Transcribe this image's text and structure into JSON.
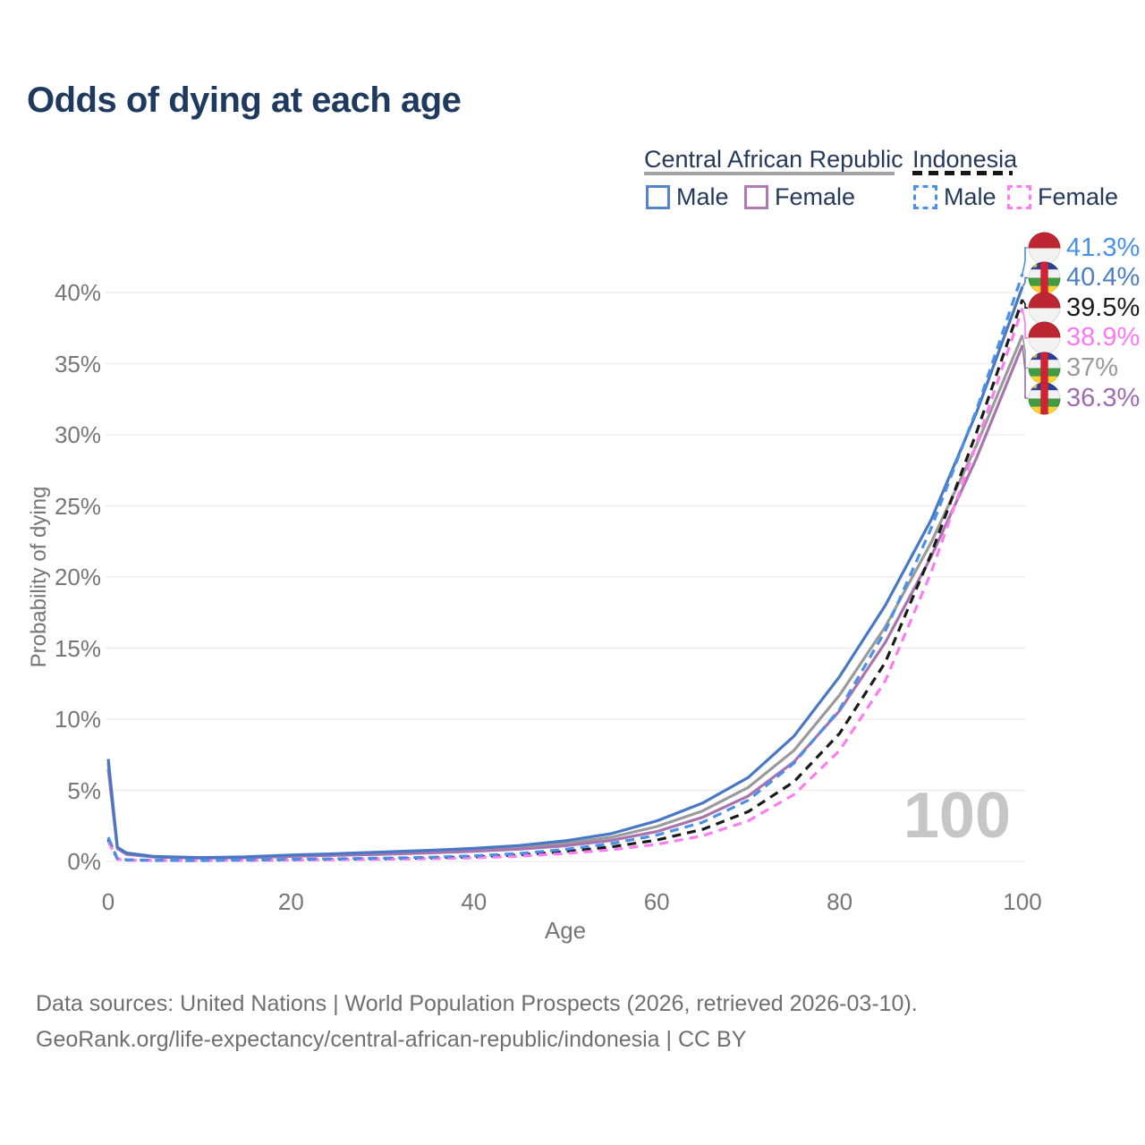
{
  "title": "Odds of dying at each age",
  "legend": {
    "groups": [
      {
        "name": "Central African Republic",
        "style": "solid",
        "rule_color": "#a3a3a3",
        "items": [
          {
            "label": "Male",
            "color": "#5585c8"
          },
          {
            "label": "Female",
            "color": "#b27ab5"
          }
        ]
      },
      {
        "name": "Indonesia",
        "style": "dashed",
        "rule_color": "#161616",
        "items": [
          {
            "label": "Male",
            "color": "#4a90e8"
          },
          {
            "label": "Female",
            "color": "#ff7cf0"
          }
        ]
      }
    ]
  },
  "chart_data": {
    "type": "line",
    "title": "Odds of dying at each age",
    "xlabel": "Age",
    "ylabel": "Probability of dying",
    "xlim": [
      0,
      100
    ],
    "ylim_percent": [
      0,
      44
    ],
    "grid": "horizontal",
    "xticks": [
      0,
      20,
      40,
      60,
      80,
      100
    ],
    "ytick_values": [
      0,
      5,
      10,
      15,
      20,
      25,
      30,
      35,
      40
    ],
    "ytick_labels": [
      "0%",
      "5%",
      "10%",
      "15%",
      "20%",
      "25%",
      "30%",
      "35%",
      "40%"
    ],
    "x_ages": [
      0,
      1,
      2,
      5,
      10,
      15,
      20,
      25,
      30,
      35,
      40,
      45,
      50,
      55,
      60,
      65,
      70,
      75,
      80,
      85,
      90,
      95,
      100
    ],
    "series": [
      {
        "key": "car_both",
        "country": "Central African Republic",
        "sex": "Both",
        "style": "solid",
        "color": "#9a9a9a",
        "values_percent": [
          6.9,
          0.95,
          0.55,
          0.32,
          0.25,
          0.29,
          0.4,
          0.49,
          0.58,
          0.69,
          0.81,
          0.98,
          1.27,
          1.7,
          2.45,
          3.55,
          5.2,
          7.8,
          11.7,
          16.5,
          22.4,
          29.3,
          37.0
        ]
      },
      {
        "key": "car_female",
        "country": "Central African Republic",
        "sex": "Female",
        "style": "solid",
        "color": "#a873ae",
        "values_percent": [
          6.5,
          0.9,
          0.5,
          0.3,
          0.23,
          0.26,
          0.35,
          0.43,
          0.5,
          0.6,
          0.71,
          0.86,
          1.1,
          1.48,
          2.1,
          3.1,
          4.6,
          7.0,
          10.6,
          15.4,
          21.4,
          28.4,
          36.3
        ]
      },
      {
        "key": "car_male",
        "country": "Central African Republic",
        "sex": "Male",
        "style": "solid",
        "color": "#4878c5",
        "values_percent": [
          7.2,
          1.0,
          0.6,
          0.35,
          0.27,
          0.32,
          0.45,
          0.55,
          0.66,
          0.78,
          0.92,
          1.12,
          1.45,
          1.95,
          2.85,
          4.1,
          5.9,
          8.8,
          13.0,
          18.0,
          24.0,
          31.6,
          40.4
        ]
      },
      {
        "key": "idn_both",
        "country": "Indonesia",
        "sex": "Both",
        "style": "dashed",
        "color": "#1a1a1a",
        "values_percent": [
          1.55,
          0.17,
          0.1,
          0.07,
          0.06,
          0.09,
          0.12,
          0.15,
          0.19,
          0.24,
          0.32,
          0.46,
          0.7,
          1.02,
          1.5,
          2.25,
          3.5,
          5.6,
          9.0,
          14.0,
          21.6,
          30.2,
          39.5
        ]
      },
      {
        "key": "idn_female",
        "country": "Indonesia",
        "sex": "Female",
        "style": "dashed",
        "color": "#ff7cf0",
        "values_percent": [
          1.4,
          0.15,
          0.09,
          0.06,
          0.06,
          0.07,
          0.09,
          0.12,
          0.15,
          0.19,
          0.25,
          0.37,
          0.56,
          0.82,
          1.2,
          1.8,
          2.85,
          4.7,
          7.8,
          12.7,
          20.3,
          29.4,
          38.9
        ]
      },
      {
        "key": "idn_male",
        "country": "Indonesia",
        "sex": "Male",
        "style": "dashed",
        "color": "#4a90e8",
        "values_percent": [
          1.7,
          0.2,
          0.12,
          0.08,
          0.07,
          0.1,
          0.15,
          0.19,
          0.23,
          0.29,
          0.39,
          0.56,
          0.85,
          1.25,
          1.85,
          2.75,
          4.3,
          6.9,
          10.7,
          16.2,
          23.4,
          31.8,
          41.3
        ]
      }
    ],
    "end_labels": [
      {
        "series": "idn_male",
        "value_percent": 41.3,
        "label": "41.3%",
        "color": "#4a90e8",
        "flag": "indonesia"
      },
      {
        "series": "car_male",
        "value_percent": 40.4,
        "label": "40.4%",
        "color": "#4d7ec3",
        "flag": "central-african-republic"
      },
      {
        "series": "idn_both",
        "value_percent": 39.5,
        "label": "39.5%",
        "color": "#1a1a1a",
        "flag": "indonesia"
      },
      {
        "series": "idn_female",
        "value_percent": 38.9,
        "label": "38.9%",
        "color": "#ff77f0",
        "flag": "indonesia"
      },
      {
        "series": "car_both",
        "value_percent": 37.0,
        "label": "37%",
        "color": "#999999",
        "flag": "central-african-republic"
      },
      {
        "series": "car_female",
        "value_percent": 36.3,
        "label": "36.3%",
        "color": "#a06ab0",
        "flag": "central-african-republic"
      }
    ],
    "watermark": "100",
    "flag_colors": {
      "indonesia": {
        "top_red": "#bd2734",
        "bottom_white": "#f2f2f2"
      },
      "central_african_republic": {
        "blue": "#2b3f97",
        "white": "#f2f2f2",
        "green": "#419b41",
        "yellow": "#ffd231",
        "red_stripe": "#cf2233",
        "star": "#ffd231"
      }
    }
  },
  "footer": {
    "line1": "Data sources: United Nations | World Population Prospects (2026, retrieved 2026-03-10).",
    "line2": "GeoRank.org/life-expectancy/central-african-republic/indonesia | CC BY"
  }
}
